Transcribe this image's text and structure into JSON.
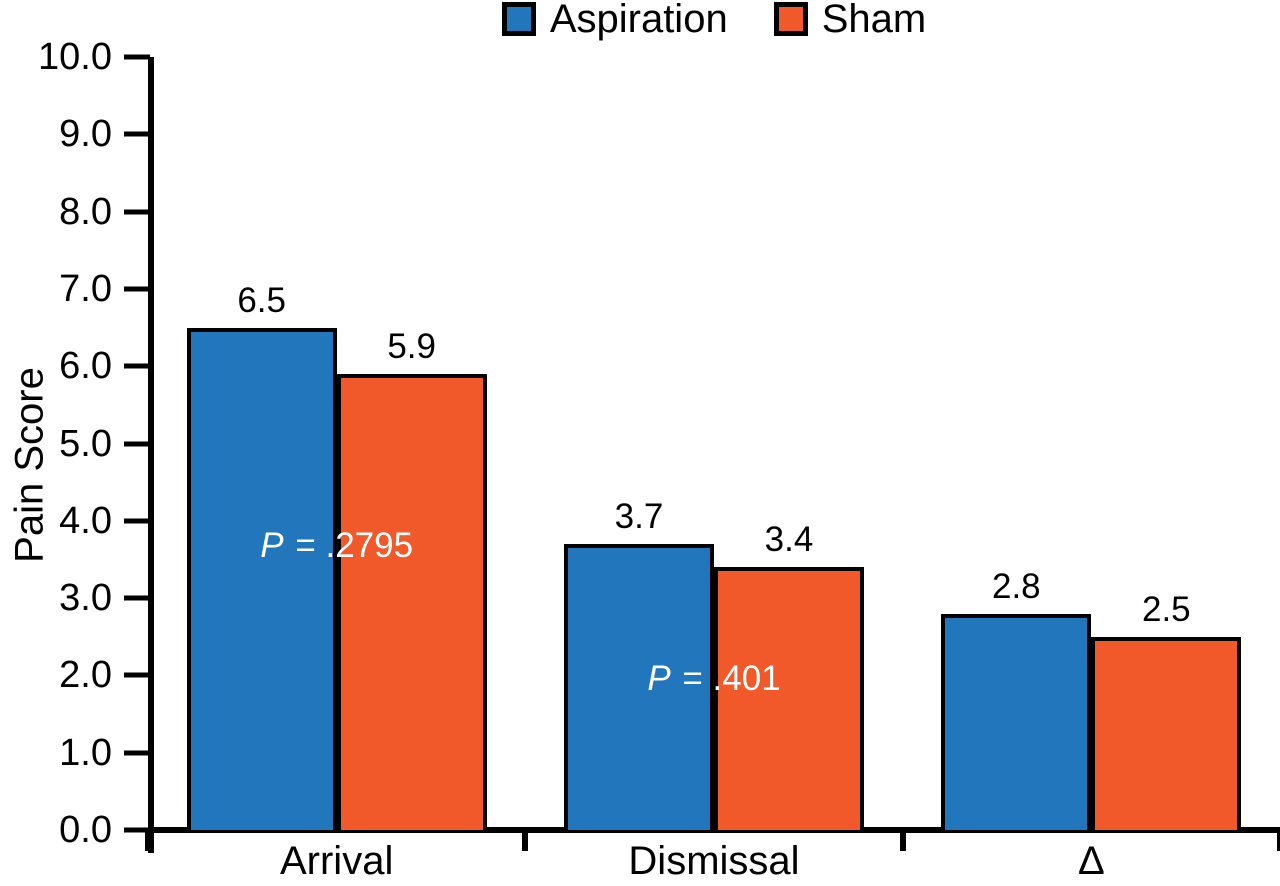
{
  "chart_data": {
    "type": "bar",
    "title": "",
    "xlabel": "",
    "ylabel": "Pain Score",
    "ylim": [
      0,
      10
    ],
    "ytick_step": 1.0,
    "ytick_labels": [
      "0.0",
      "1.0",
      "2.0",
      "3.0",
      "4.0",
      "5.0",
      "6.0",
      "7.0",
      "8.0",
      "9.0",
      "10.0"
    ],
    "grid": false,
    "legend_position": "top-center",
    "categories": [
      "Arrival",
      "Dismissal",
      "Δ"
    ],
    "series": [
      {
        "name": "Aspiration",
        "color": "#2176BC",
        "values": [
          6.5,
          3.7,
          2.8
        ]
      },
      {
        "name": "Sham",
        "color": "#F1592A",
        "values": [
          5.9,
          3.4,
          2.5
        ]
      }
    ],
    "annotations": [
      {
        "italic": "P",
        "rest": " = .2795",
        "category_index": 0,
        "y_score": 3.67,
        "color": "#FFFFFF"
      },
      {
        "italic": "P",
        "rest": " = .401",
        "category_index": 1,
        "y_score": 1.95,
        "color": "#FFFFFF"
      }
    ],
    "axis_color": "#000000",
    "bar_outline_color": "#000000",
    "value_label_color": "#000000"
  }
}
